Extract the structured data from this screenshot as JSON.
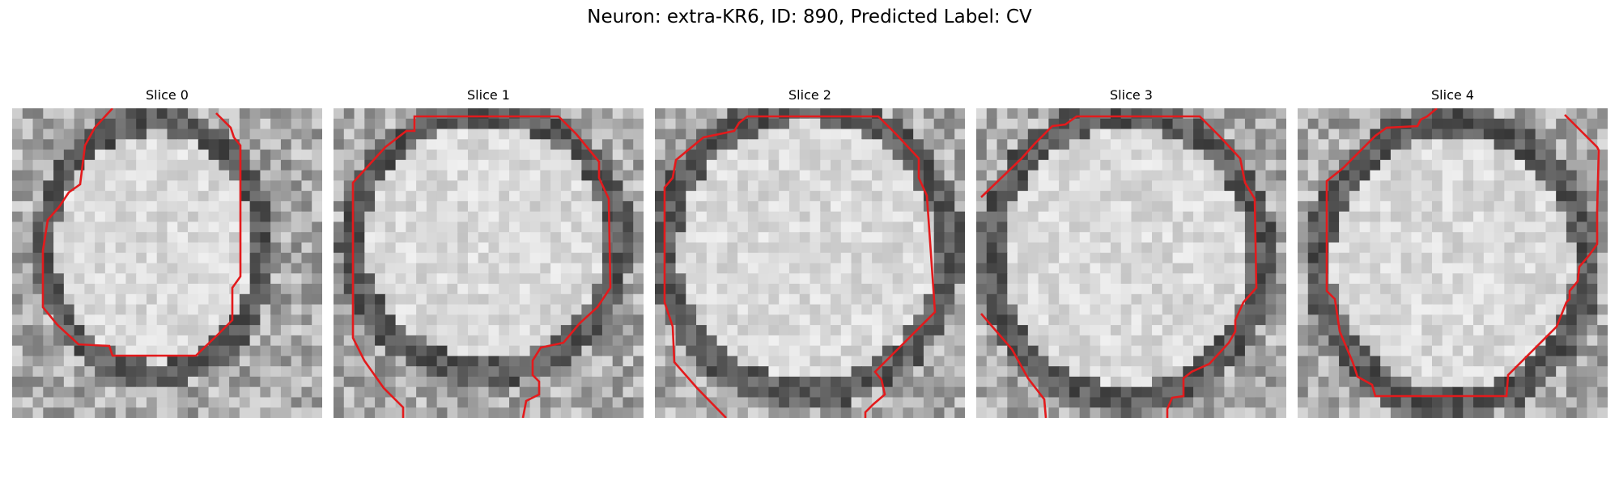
{
  "figure": {
    "title": "Neuron: extra-KR6, ID: 890, Predicted Label: CV"
  },
  "panels": [
    {
      "title": "Slice 0"
    },
    {
      "title": "Slice 1"
    },
    {
      "title": "Slice 2"
    },
    {
      "title": "Slice 3"
    },
    {
      "title": "Slice 4"
    }
  ],
  "colors": {
    "contour": "#e31a1c",
    "background": "#ffffff"
  }
}
